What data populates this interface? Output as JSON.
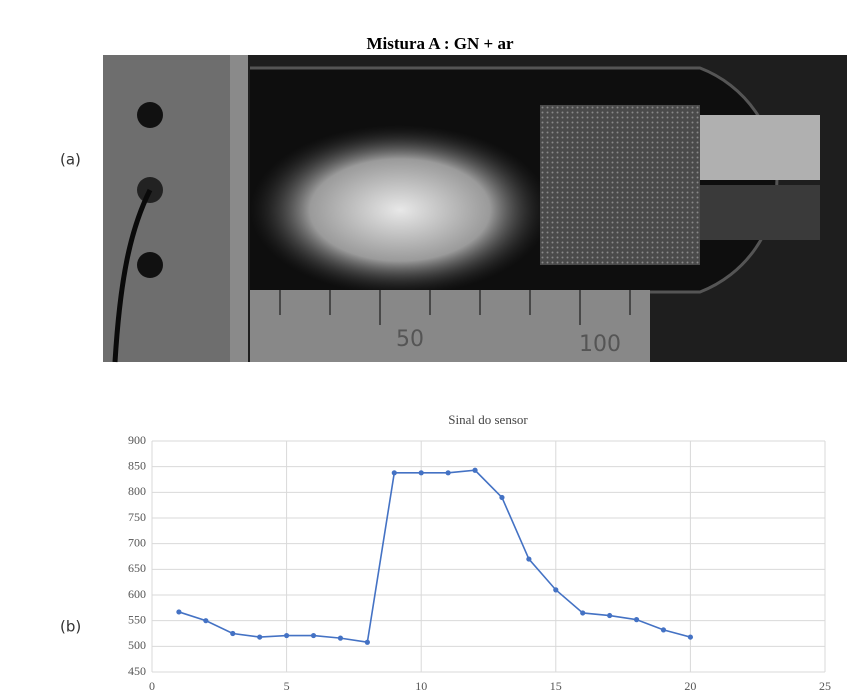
{
  "title": "Mistura A : GN + ar",
  "labels": {
    "a": "(a)",
    "b": "(b)"
  },
  "photo": {
    "ruler_labels": [
      "50",
      "100"
    ]
  },
  "chart_data": {
    "type": "line",
    "title": "Sinal do sensor",
    "x": [
      1,
      2,
      3,
      4,
      5,
      6,
      7,
      8,
      9,
      10,
      11,
      12,
      13,
      14,
      15,
      16,
      17,
      18,
      19,
      20
    ],
    "series": [
      {
        "color": "#4472c4",
        "values": [
          567,
          550,
          525,
          518,
          521,
          521,
          516,
          508,
          838,
          838,
          838,
          843,
          790,
          670,
          610,
          565,
          560,
          552,
          532,
          518
        ]
      }
    ],
    "xlim": [
      0,
      25
    ],
    "xticks": [
      0,
      5,
      10,
      15,
      20,
      25
    ],
    "ylim": [
      450,
      900
    ],
    "yticks": [
      450,
      500,
      550,
      600,
      650,
      700,
      750,
      800,
      850,
      900
    ],
    "grid": true
  }
}
